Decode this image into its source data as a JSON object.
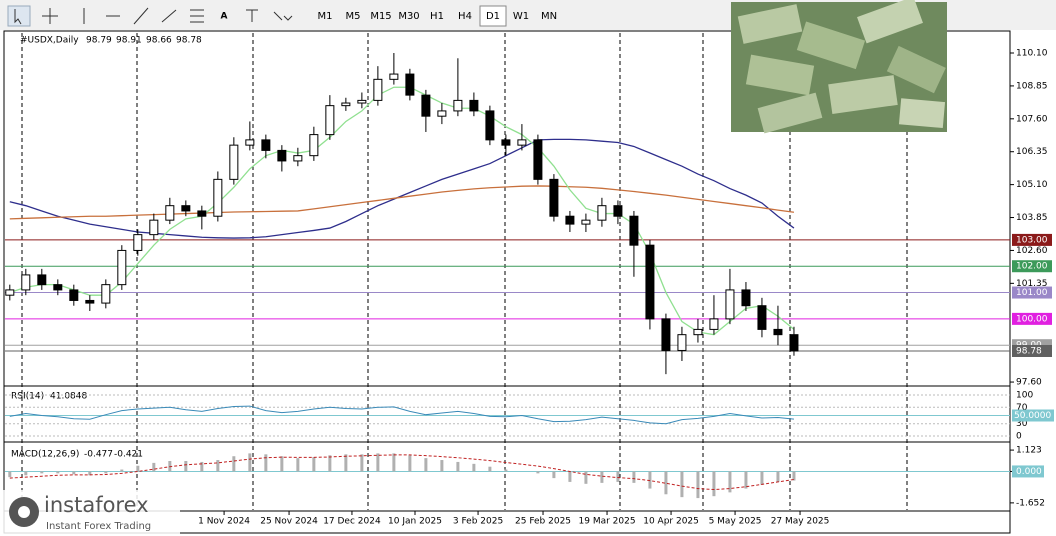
{
  "chart_data": {
    "type": "candlestick",
    "title": "#USDX,Daily",
    "header_values": [
      98.79,
      98.91,
      98.66,
      98.78
    ],
    "open": [
      100.9,
      101.1,
      101.67,
      101.3,
      101.1,
      100.7,
      100.6,
      101.3,
      102.6,
      103.2,
      103.75,
      104.3,
      104.1,
      103.9,
      105.3,
      106.6,
      106.8,
      106.4,
      106.0,
      106.2,
      107.0,
      108.1,
      108.2,
      108.3,
      109.1,
      109.3,
      108.5,
      107.7,
      107.9,
      108.3,
      107.9,
      106.8,
      106.6,
      106.8,
      105.3,
      103.9,
      103.6,
      103.75,
      104.3,
      103.9,
      102.8,
      100.0,
      98.8,
      99.4,
      99.6,
      100.0,
      101.1,
      100.5,
      99.6,
      99.4
    ],
    "high": [
      101.3,
      101.9,
      101.9,
      101.5,
      101.3,
      100.9,
      101.5,
      102.8,
      103.4,
      104.0,
      104.6,
      104.5,
      104.3,
      105.6,
      106.9,
      107.5,
      107.0,
      106.6,
      106.5,
      107.3,
      108.5,
      108.4,
      108.6,
      109.6,
      110.1,
      109.5,
      108.7,
      108.2,
      109.9,
      108.6,
      108.1,
      107.0,
      107.4,
      107.0,
      105.5,
      104.1,
      104.0,
      104.6,
      104.5,
      104.1,
      103.0,
      100.2,
      99.7,
      100.0,
      100.9,
      101.9,
      101.4,
      100.8,
      100.5,
      99.7
    ],
    "low": [
      100.7,
      100.9,
      101.1,
      100.9,
      100.5,
      100.3,
      100.4,
      101.1,
      102.4,
      103.0,
      103.6,
      103.9,
      103.4,
      103.7,
      105.1,
      106.4,
      106.1,
      105.6,
      105.8,
      106.0,
      106.8,
      107.9,
      108.0,
      108.1,
      108.9,
      108.3,
      107.1,
      107.4,
      107.7,
      107.7,
      106.6,
      106.2,
      106.4,
      105.1,
      103.7,
      103.3,
      103.3,
      103.5,
      103.6,
      101.6,
      99.6,
      97.9,
      98.4,
      99.1,
      99.4,
      99.8,
      100.3,
      99.3,
      99.0,
      98.6
    ],
    "close": [
      101.1,
      101.67,
      101.3,
      101.1,
      100.7,
      100.6,
      101.3,
      102.6,
      103.2,
      103.75,
      104.3,
      104.1,
      103.9,
      105.3,
      106.6,
      106.8,
      106.4,
      106.0,
      106.2,
      107.0,
      108.1,
      108.2,
      108.3,
      109.1,
      109.3,
      108.5,
      107.7,
      107.9,
      108.3,
      107.9,
      106.8,
      106.6,
      106.8,
      105.3,
      103.9,
      103.6,
      103.75,
      104.3,
      103.9,
      102.8,
      100.0,
      98.8,
      99.4,
      99.6,
      100.0,
      101.1,
      100.5,
      99.6,
      99.4,
      98.78
    ],
    "up_color": "#ffffff",
    "down_color": "#000000",
    "overlays": [
      {
        "color": "#2e2e8c",
        "values": [
          104.45,
          104.3,
          104.1,
          103.9,
          103.75,
          103.6,
          103.5,
          103.4,
          103.3,
          103.25,
          103.2,
          103.15,
          103.1,
          103.08,
          103.07,
          103.08,
          103.12,
          103.2,
          103.28,
          103.36,
          103.45,
          103.7,
          104.0,
          104.3,
          104.55,
          104.8,
          105.05,
          105.3,
          105.5,
          105.7,
          105.9,
          106.2,
          106.5,
          106.8,
          106.82,
          106.82,
          106.8,
          106.75,
          106.7,
          106.55,
          106.3,
          106.05,
          105.8,
          105.5,
          105.25,
          104.95,
          104.7,
          104.4,
          103.9,
          103.45
        ]
      },
      {
        "color": "#c8703c",
        "values": [
          103.8,
          103.82,
          103.84,
          103.86,
          103.88,
          103.9,
          103.9,
          103.92,
          103.94,
          103.96,
          103.98,
          104.0,
          104.02,
          104.04,
          104.06,
          104.07,
          104.08,
          104.09,
          104.1,
          104.18,
          104.26,
          104.34,
          104.42,
          104.5,
          104.58,
          104.66,
          104.74,
          104.82,
          104.88,
          104.94,
          104.98,
          105.01,
          105.04,
          105.05,
          105.04,
          105.02,
          105.0,
          104.96,
          104.9,
          104.84,
          104.77,
          104.7,
          104.62,
          104.54,
          104.46,
          104.38,
          104.3,
          104.22,
          104.13,
          104.05
        ]
      },
      {
        "color": "#90e090",
        "values": [
          101.0,
          101.2,
          101.3,
          101.3,
          101.1,
          100.9,
          100.9,
          101.4,
          102.1,
          102.8,
          103.4,
          103.8,
          103.9,
          104.4,
          105.0,
          105.7,
          106.2,
          106.4,
          106.3,
          106.4,
          106.9,
          107.5,
          107.9,
          108.5,
          108.8,
          108.8,
          108.5,
          108.2,
          108.0,
          108.0,
          107.7,
          107.3,
          107.0,
          106.5,
          105.8,
          104.9,
          104.2,
          104.0,
          104.0,
          103.6,
          102.5,
          101.0,
          99.9,
          99.5,
          99.4,
          99.9,
          100.4,
          100.5,
          100.1,
          99.6
        ]
      }
    ],
    "levels": [
      {
        "value": 103,
        "label": "103.00",
        "color": "#8b1a1a"
      },
      {
        "value": 102,
        "label": "102.00",
        "color": "#3c9a5a"
      },
      {
        "value": 101,
        "label": "101.00",
        "color": "#9a88c8"
      },
      {
        "value": 100,
        "label": "100.00",
        "color": "#e020e0"
      },
      {
        "value": 99,
        "label": "99.00",
        "color": "#a0a0a0"
      },
      {
        "value": 98.78,
        "label": "98.78",
        "color": "#606060"
      }
    ],
    "ylim": [
      97.45,
      110.86
    ],
    "yticks": [
      {
        "value": 110.1,
        "label": "110.10"
      },
      108.85,
      {
        "value": 107.6,
        "label": "107.60"
      },
      106.35,
      {
        "value": 105.1,
        "label": "105.10"
      },
      {
        "value": 103.85,
        "label": "103.85"
      },
      {
        "value": 102.6,
        "label": "102.60"
      },
      101.35,
      {
        "value": 97.6,
        "label": "97.60"
      }
    ],
    "xlim": [
      -0.3,
      62.5
    ],
    "xticks": [
      {
        "value": 13.39,
        "label": "1 Nov 2024"
      },
      {
        "value": 17.45,
        "label": "25 Nov 2024"
      },
      {
        "value": 21.38,
        "label": "17 Dec 2024"
      },
      {
        "value": 25.32,
        "label": "10 Jan 2025"
      },
      {
        "value": 29.26,
        "label": "3 Feb 2025"
      },
      {
        "value": 33.32,
        "label": "25 Feb 2025"
      },
      {
        "value": 37.32,
        "label": "19 Mar 2025"
      },
      {
        "value": 41.32,
        "label": "10 Apr 2025"
      },
      {
        "value": 45.32,
        "label": "5 May 2025"
      },
      {
        "value": 49.38,
        "label": "27 May 2025"
      }
    ],
    "rsi": {
      "name": "RSI(14)",
      "value": 41.0848,
      "color": "#3a8ab8",
      "values": [
        48,
        55,
        50,
        47,
        42,
        41,
        52,
        62,
        66,
        68,
        70,
        64,
        60,
        67,
        72,
        73,
        62,
        57,
        60,
        66,
        70,
        67,
        66,
        70,
        71,
        60,
        52,
        56,
        60,
        55,
        48,
        47,
        50,
        42,
        35,
        36,
        40,
        46,
        42,
        38,
        32,
        30,
        40,
        43,
        48,
        55,
        49,
        44,
        45,
        41.0848
      ],
      "ylim": [
        -9.76,
        117.1
      ],
      "yticks": [
        100,
        70,
        30,
        0
      ],
      "level": {
        "value": 50,
        "label": "50.0000"
      }
    },
    "macd": {
      "name": "MACD(12,26,9)",
      "value": -0.477,
      "signal_value": -0.421,
      "color": "#b0b0b0",
      "signal_color": "#c02020",
      "histogram": [
        -0.3,
        -0.2,
        -0.1,
        -0.1,
        -0.15,
        -0.2,
        -0.1,
        0.1,
        0.3,
        0.45,
        0.55,
        0.55,
        0.5,
        0.6,
        0.8,
        0.95,
        0.9,
        0.8,
        0.7,
        0.75,
        0.85,
        0.9,
        0.9,
        0.95,
        0.95,
        0.85,
        0.7,
        0.6,
        0.5,
        0.4,
        0.25,
        0.1,
        0.0,
        -0.1,
        -0.35,
        -0.55,
        -0.65,
        -0.6,
        -0.55,
        -0.6,
        -0.9,
        -1.2,
        -1.35,
        -1.4,
        -1.3,
        -1.1,
        -0.9,
        -0.7,
        -0.55,
        -0.477
      ],
      "signal": [
        -0.35,
        -0.3,
        -0.25,
        -0.2,
        -0.18,
        -0.18,
        -0.16,
        -0.1,
        0.0,
        0.12,
        0.25,
        0.35,
        0.4,
        0.45,
        0.55,
        0.65,
        0.72,
        0.75,
        0.74,
        0.74,
        0.76,
        0.8,
        0.82,
        0.85,
        0.87,
        0.87,
        0.83,
        0.78,
        0.72,
        0.65,
        0.57,
        0.47,
        0.38,
        0.28,
        0.15,
        0.0,
        -0.15,
        -0.25,
        -0.32,
        -0.38,
        -0.48,
        -0.62,
        -0.77,
        -0.9,
        -0.95,
        -0.9,
        -0.8,
        -0.68,
        -0.55,
        -0.421
      ],
      "ylim": [
        -2.079,
        1.443
      ],
      "yticks": [
        1.123,
        {
          "value": 0,
          "label": "0.000"
        },
        -1.652
      ]
    }
  },
  "toolbar": {
    "tools": [
      "A"
    ],
    "timeframes": [
      "M1",
      "M5",
      "M15",
      "M30",
      "H1",
      "H4",
      "D1",
      "W1",
      "MN"
    ],
    "active": 6
  },
  "branding": {
    "name": "instaforex",
    "tagline": "Instant Forex Trading"
  }
}
